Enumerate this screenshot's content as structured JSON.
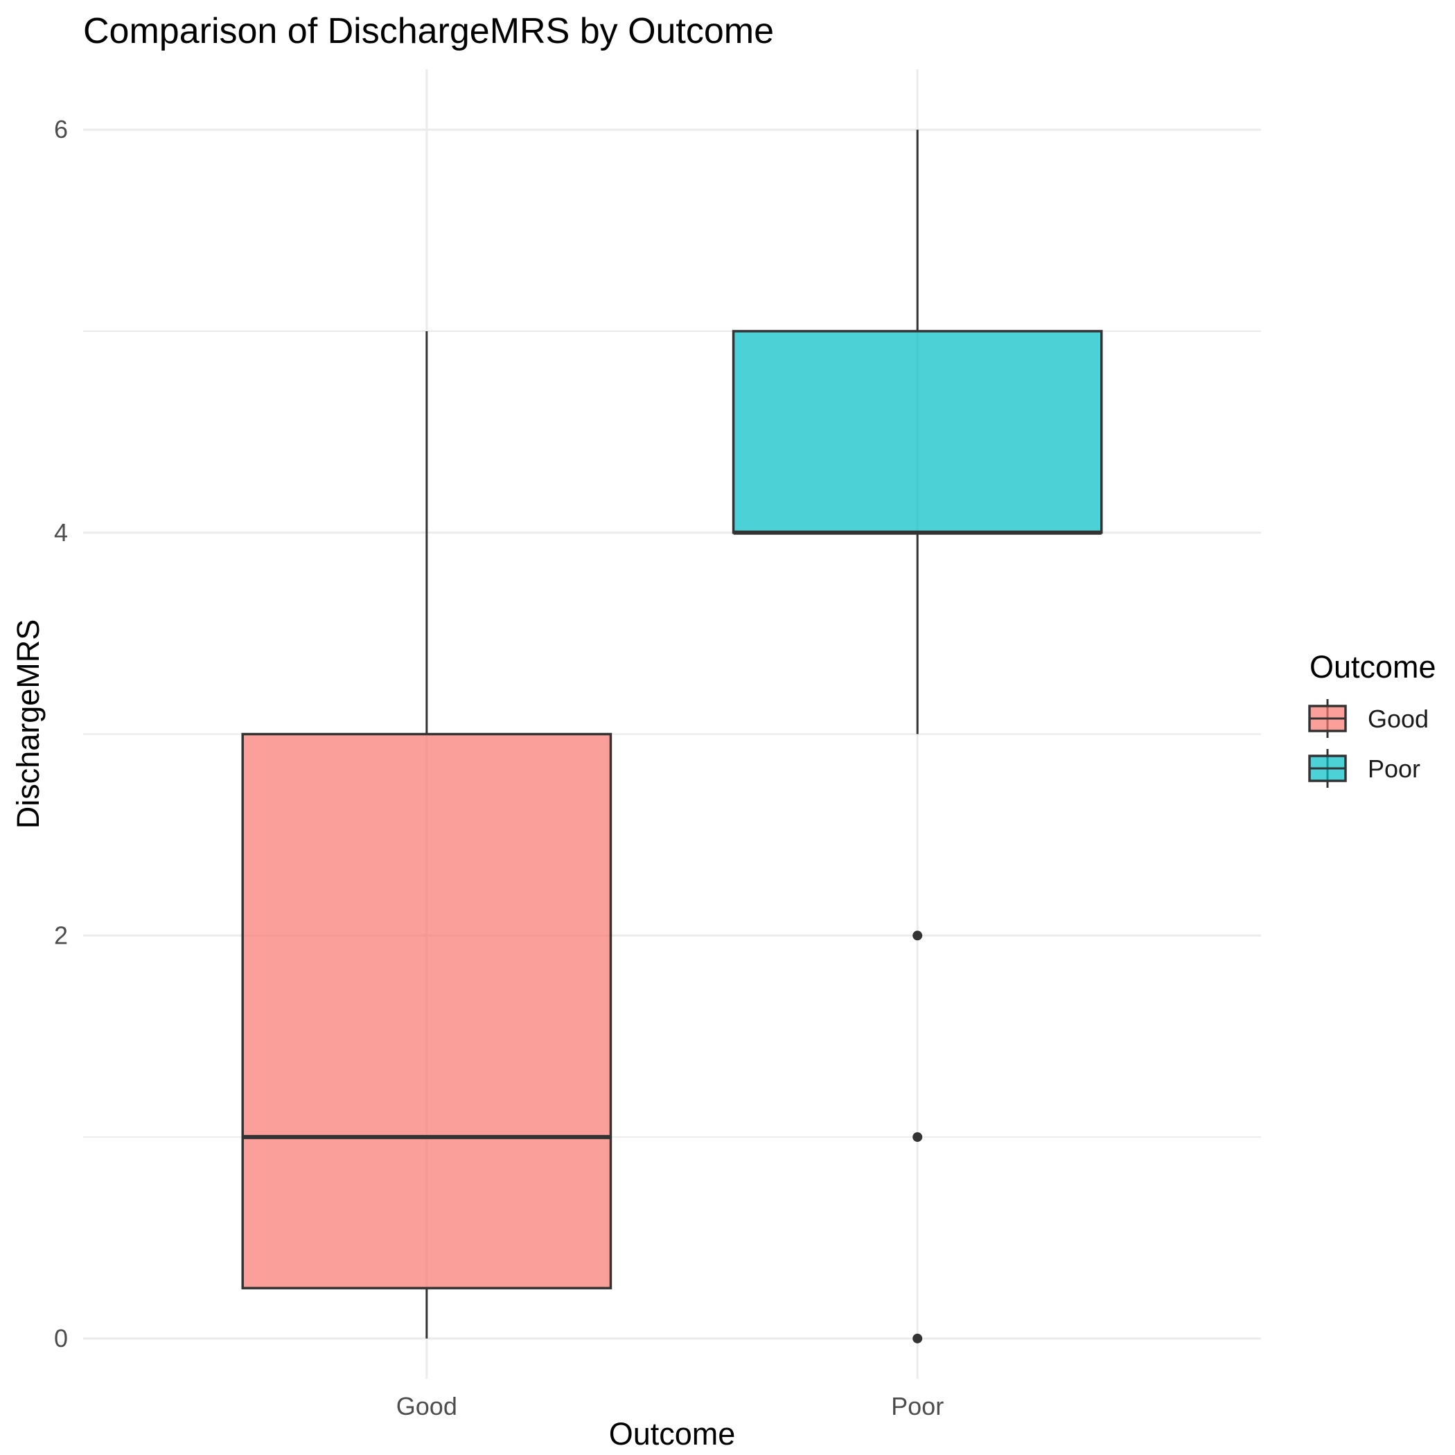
{
  "chart_data": {
    "type": "boxplot",
    "title": "Comparison of DischargeMRS by Outcome",
    "xlabel": "Outcome",
    "ylabel": "DischargeMRS",
    "categories": [
      "Good",
      "Poor"
    ],
    "ylim": [
      -0.2,
      6.3
    ],
    "yticks": [
      0,
      2,
      4,
      6
    ],
    "grid": true,
    "legend": {
      "title": "Outcome",
      "position": "right",
      "entries": [
        "Good",
        "Poor"
      ]
    },
    "colors": {
      "Good": "#F8766D",
      "Poor": "#00BFC4"
    },
    "series": [
      {
        "category": "Good",
        "min": 0,
        "q1": 0.25,
        "median": 1,
        "q3": 3,
        "max": 5,
        "outliers": []
      },
      {
        "category": "Poor",
        "min": 3,
        "q1": 4,
        "median": 4,
        "q3": 5,
        "max": 6,
        "outliers": [
          0,
          1,
          2
        ]
      }
    ]
  }
}
